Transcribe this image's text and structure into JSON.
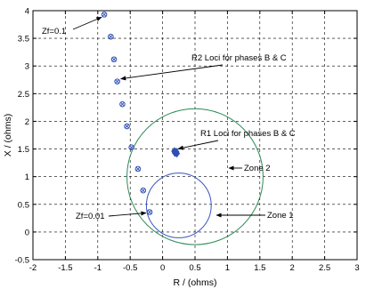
{
  "chart_data": {
    "type": "scatter",
    "title": "",
    "xlabel": "R / (ohms)",
    "ylabel": "X / (ohms)",
    "xlim": [
      -2,
      3
    ],
    "ylim": [
      -0.5,
      4
    ],
    "xticks": [
      -2,
      -1.5,
      -1,
      -0.5,
      0,
      0.5,
      1,
      1.5,
      2,
      2.5,
      3
    ],
    "yticks": [
      -0.5,
      0,
      0.5,
      1,
      1.5,
      2,
      2.5,
      3,
      3.5,
      4
    ],
    "xtick_labels": [
      "-2",
      "-1.5",
      "-1",
      "-0.5",
      "0",
      "0.5",
      "1",
      "1.5",
      "2",
      "2.5",
      "3"
    ],
    "ytick_labels": [
      "-0.5",
      "0",
      "0.5",
      "1",
      "1.5",
      "2",
      "2.5",
      "3",
      "3.5",
      "4"
    ],
    "grid": true,
    "series": [
      {
        "name": "R2 Loci for phases B & C",
        "marker": "circle-x",
        "color": "#2f4fb5",
        "points": [
          [
            -0.9,
            3.93
          ],
          [
            -0.8,
            3.53
          ],
          [
            -0.75,
            3.12
          ],
          [
            -0.7,
            2.72
          ],
          [
            -0.62,
            2.31
          ],
          [
            -0.55,
            1.91
          ],
          [
            -0.48,
            1.53
          ],
          [
            -0.38,
            1.14
          ],
          [
            -0.3,
            0.75
          ],
          [
            -0.2,
            0.36
          ]
        ]
      },
      {
        "name": "R1 Loci for phases B & C",
        "marker": "filled-diamond",
        "color": "#2f4fb5",
        "points": [
          [
            0.2,
            1.44
          ],
          [
            0.18,
            1.46
          ],
          [
            0.22,
            1.42
          ],
          [
            0.21,
            1.45
          ],
          [
            0.19,
            1.43
          ]
        ]
      }
    ],
    "circles": [
      {
        "name": "Zone 2",
        "center": [
          0.5,
          1.0
        ],
        "radius": 1.05,
        "color": "#2e8b57"
      },
      {
        "name": "Zone 1",
        "center": [
          0.25,
          0.48
        ],
        "radius": 0.5,
        "color": "#3a57c0"
      }
    ],
    "annotations": [
      {
        "text": "Zf=0.1",
        "at": [
          -0.9,
          3.93
        ]
      },
      {
        "text": "R2 Loci for phases B & C",
        "at": [
          -0.7,
          2.72
        ]
      },
      {
        "text": "R1 Loci for phases B & C",
        "at": [
          0.2,
          1.44
        ]
      },
      {
        "text": "Zone 2",
        "at": [
          1.55,
          1.55
        ]
      },
      {
        "text": "Zone 1",
        "at": [
          0.75,
          0.45
        ]
      },
      {
        "text": "Zf=0.01",
        "at": [
          -0.2,
          0.36
        ]
      }
    ]
  }
}
